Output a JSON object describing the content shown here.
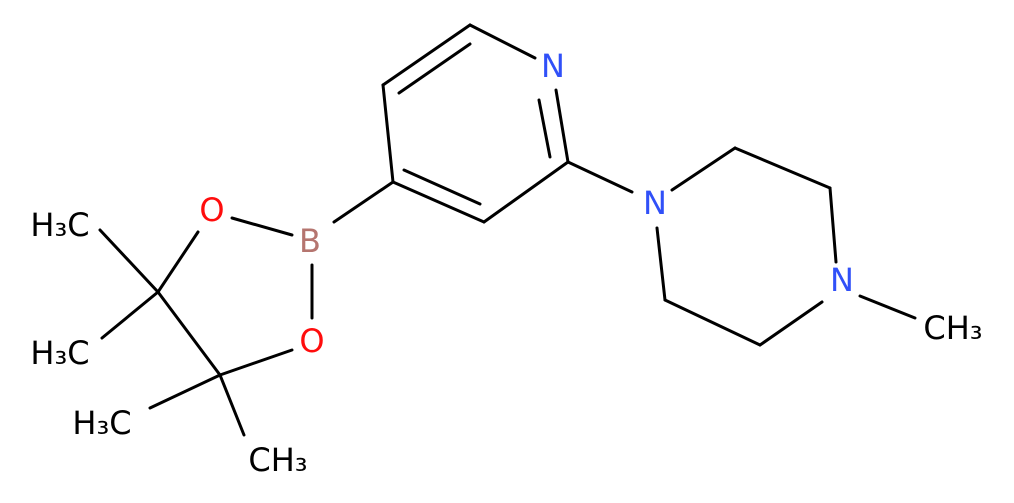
{
  "atoms": [
    {
      "label": "N"
    },
    {
      "label": "N"
    },
    {
      "label": "N"
    },
    {
      "label": "B"
    },
    {
      "label": "O"
    },
    {
      "label": "O"
    },
    {
      "label": "H₃C"
    },
    {
      "label": "H₃C"
    },
    {
      "label": "H₃C"
    },
    {
      "label": "CH₃"
    },
    {
      "label": "CH₃"
    }
  ]
}
